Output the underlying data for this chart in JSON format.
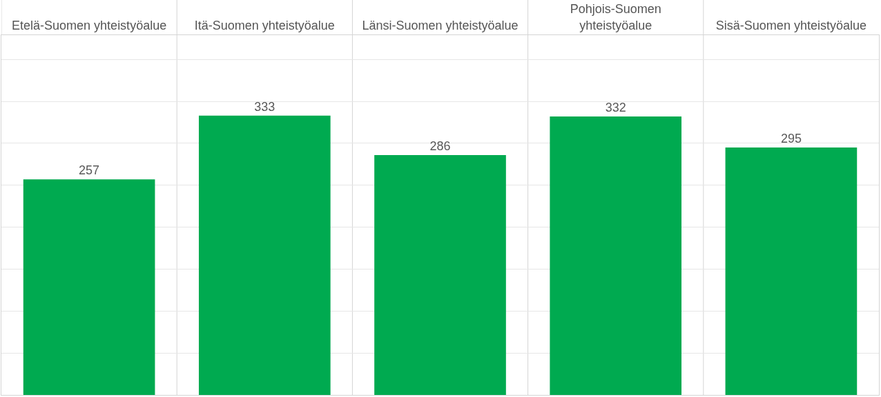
{
  "chart_data": {
    "type": "bar",
    "categories": [
      "Etelä-Suomen yhteistyöalue",
      "Itä-Suomen yhteistyöalue",
      "Länsi-Suomen yhteistyöalue",
      "Pohjois-Suomen yhteistyöalue",
      "Sisä-Suomen yhteistyöalue"
    ],
    "values": [
      257,
      333,
      286,
      332,
      295
    ],
    "color": "#00aa50",
    "data_labels": true,
    "ylim": [
      0,
      429
    ],
    "yticks": [
      {
        "value": 0,
        "label": null
      },
      {
        "value": 50,
        "label": null
      },
      {
        "value": 100,
        "label": null
      },
      {
        "value": 150,
        "label": null
      },
      {
        "value": 200,
        "label": null
      },
      {
        "value": 250,
        "label": null
      },
      {
        "value": 300,
        "label": null
      },
      {
        "value": 350,
        "label": null
      },
      {
        "value": 400,
        "label": null
      }
    ],
    "grid": true,
    "tick_labels": "x"
  }
}
